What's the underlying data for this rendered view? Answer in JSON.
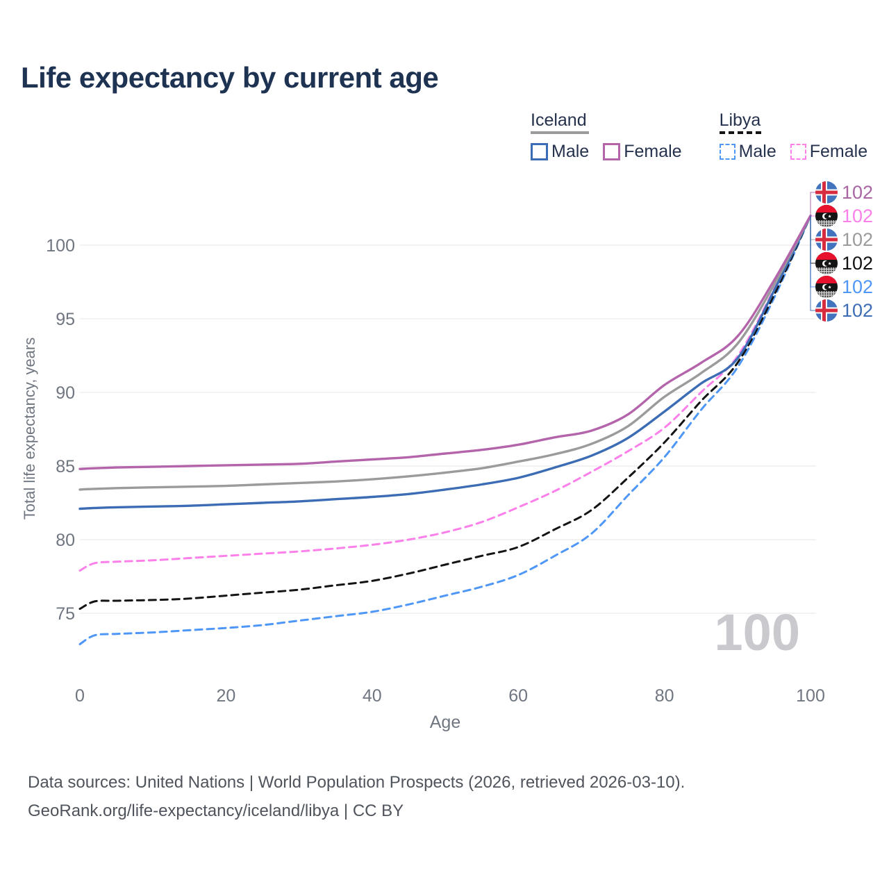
{
  "title": "Life expectancy by current age",
  "legend": {
    "groups": [
      {
        "title": "Iceland",
        "line_style": "solid",
        "underline_color": "#9b9b9b",
        "items": [
          {
            "label": "Male",
            "color": "#3b6cb4"
          },
          {
            "label": "Female",
            "color": "#b464aa"
          }
        ]
      },
      {
        "title": "Libya",
        "line_style": "dashed",
        "underline_color": "#141414",
        "items": [
          {
            "label": "Male",
            "color": "#4f97f7"
          },
          {
            "label": "Female",
            "color": "#fb80ea"
          }
        ]
      }
    ]
  },
  "chart_data": {
    "type": "line",
    "title": "Life expectancy by current age",
    "xlabel": "Age",
    "ylabel": "Total life expectancy, years",
    "x_ticks": [
      0,
      20,
      40,
      60,
      80,
      100
    ],
    "y_ticks": [
      75,
      80,
      85,
      90,
      95,
      100
    ],
    "xlim": [
      0,
      100
    ],
    "ylim": [
      72,
      103
    ],
    "grid": "horizontal",
    "gridline_color": "#e9e9ec",
    "tick_color": "#6f7680",
    "ages": [
      0,
      2,
      5,
      10,
      15,
      20,
      25,
      30,
      35,
      40,
      45,
      50,
      55,
      60,
      65,
      70,
      75,
      80,
      85,
      90,
      95,
      100
    ],
    "series": [
      {
        "name": "Libya Male",
        "country": "Libya",
        "sex": "Male",
        "color": "#4f97f7",
        "dash": "dashed",
        "values": [
          72.9,
          73.5,
          73.6,
          73.7,
          73.85,
          74.0,
          74.2,
          74.5,
          74.8,
          75.1,
          75.6,
          76.2,
          76.8,
          77.6,
          78.9,
          80.4,
          83.0,
          85.6,
          88.8,
          91.7,
          96.4,
          102
        ]
      },
      {
        "name": "Libya Both sexes",
        "country": "Libya",
        "sex": "Both",
        "color": "#141414",
        "dash": "dashed",
        "values": [
          75.3,
          75.8,
          75.85,
          75.9,
          76.0,
          76.2,
          76.4,
          76.6,
          76.9,
          77.2,
          77.7,
          78.3,
          78.9,
          79.5,
          80.7,
          82.0,
          84.2,
          86.6,
          89.4,
          92.0,
          96.6,
          102
        ]
      },
      {
        "name": "Libya Female",
        "country": "Libya",
        "sex": "Female",
        "color": "#fb80ea",
        "dash": "dashed",
        "values": [
          77.9,
          78.4,
          78.5,
          78.6,
          78.75,
          78.9,
          79.05,
          79.2,
          79.4,
          79.65,
          80.0,
          80.5,
          81.2,
          82.2,
          83.3,
          84.6,
          86.0,
          87.6,
          90.0,
          92.45,
          97.0,
          102
        ]
      },
      {
        "name": "Iceland Male",
        "country": "Iceland",
        "sex": "Male",
        "color": "#3b6cb4",
        "dash": "solid",
        "values": [
          82.1,
          82.15,
          82.2,
          82.25,
          82.3,
          82.4,
          82.5,
          82.6,
          82.75,
          82.9,
          83.1,
          83.4,
          83.75,
          84.2,
          84.9,
          85.7,
          86.9,
          88.7,
          90.6,
          92.3,
          96.9,
          102
        ]
      },
      {
        "name": "Iceland Both sexes",
        "country": "Iceland",
        "sex": "Both",
        "color": "#9b9b9b",
        "dash": "solid",
        "values": [
          83.4,
          83.45,
          83.5,
          83.55,
          83.6,
          83.65,
          83.75,
          83.85,
          83.95,
          84.1,
          84.3,
          84.55,
          84.85,
          85.3,
          85.8,
          86.5,
          87.7,
          89.7,
          91.3,
          93.3,
          97.3,
          102
        ]
      },
      {
        "name": "Iceland Female",
        "country": "Iceland",
        "sex": "Female",
        "color": "#b464aa",
        "dash": "solid",
        "values": [
          84.8,
          84.85,
          84.9,
          84.95,
          85.0,
          85.05,
          85.1,
          85.15,
          85.3,
          85.45,
          85.6,
          85.85,
          86.1,
          86.45,
          86.95,
          87.4,
          88.5,
          90.5,
          92.0,
          93.8,
          97.6,
          102
        ]
      }
    ],
    "end_labels": [
      {
        "series": "Iceland Female",
        "flag": "iceland",
        "value": "102",
        "color": "#a866a2"
      },
      {
        "series": "Libya Female",
        "flag": "libya",
        "value": "102",
        "color": "#fb80ea"
      },
      {
        "series": "Iceland Both sexes",
        "flag": "iceland",
        "value": "102",
        "color": "#9b9b9b"
      },
      {
        "series": "Libya Both sexes",
        "flag": "libya",
        "value": "102",
        "color": "#111111"
      },
      {
        "series": "Libya Male",
        "flag": "libya",
        "value": "102",
        "color": "#4f97f7"
      },
      {
        "series": "Iceland Male",
        "flag": "iceland",
        "value": "102",
        "color": "#3b6cb4"
      }
    ],
    "legend_position": "top-right"
  },
  "annotations": {
    "watermark": "100"
  },
  "footer": {
    "line1": "Data sources: United Nations | World Population Prospects (2026, retrieved 2026-03-10).",
    "line2": "GeoRank.org/life-expectancy/iceland/libya | CC BY"
  }
}
